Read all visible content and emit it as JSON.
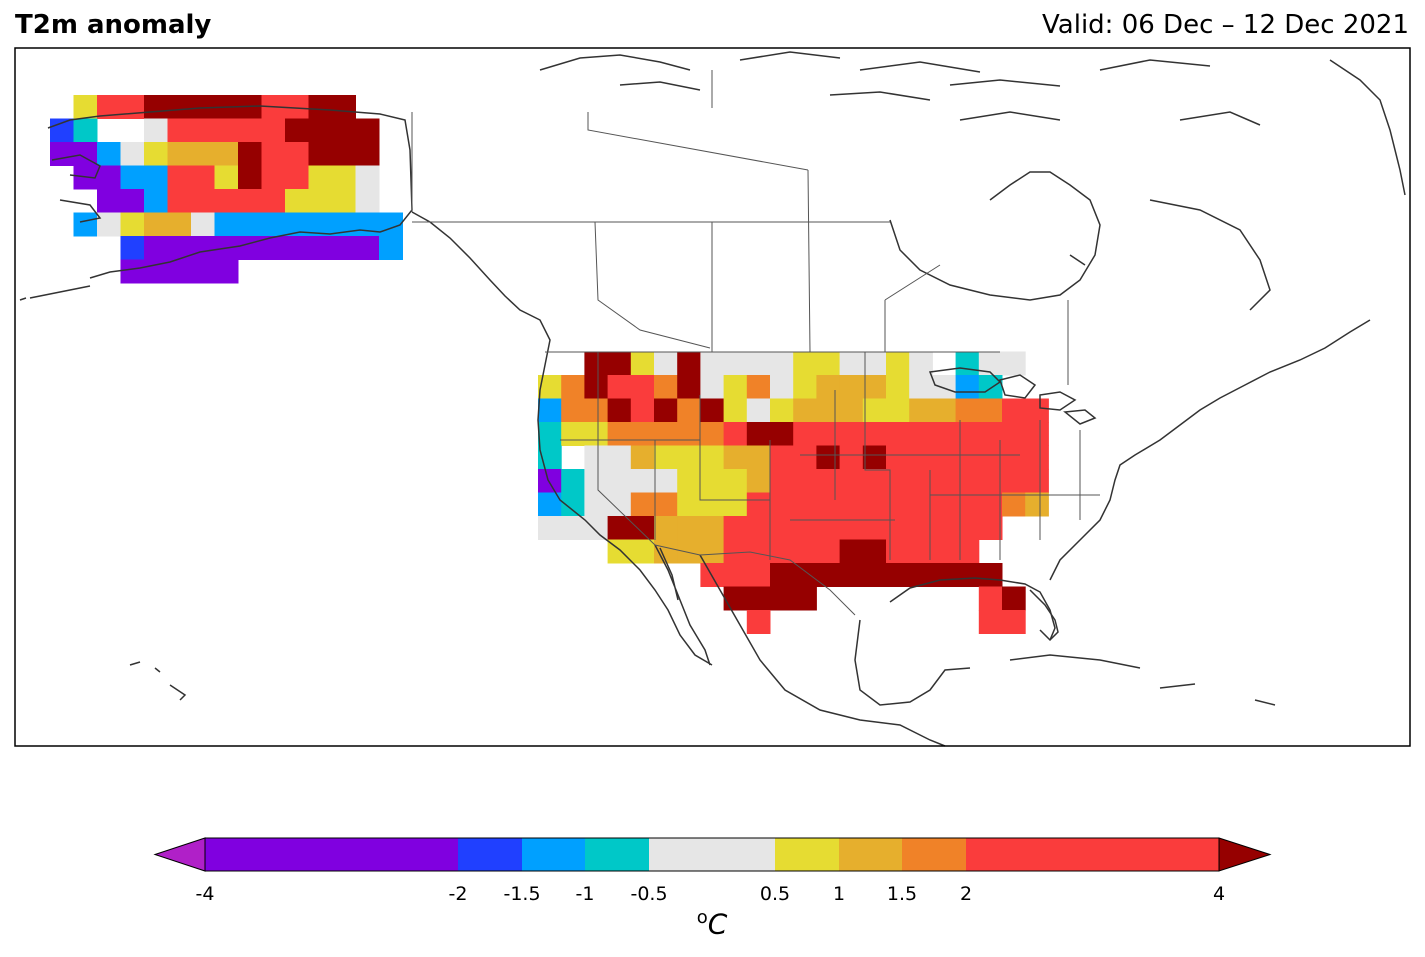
{
  "header": {
    "title": "T2m anomaly",
    "valid": "Valid: 06 Dec – 12 Dec 2021"
  },
  "colorbar": {
    "unit_sup": "o",
    "unit_main": "C",
    "ticks": [
      "-4",
      "-2",
      "-1.5",
      "-1",
      "-0.5",
      "0.5",
      "1",
      "1.5",
      "2",
      "4"
    ],
    "bins": [
      {
        "range": "< -4",
        "color": "#b020c8"
      },
      {
        "range": "-4 to -2",
        "color": "#8000e0"
      },
      {
        "range": "-2 to -1.5",
        "color": "#2040ff"
      },
      {
        "range": "-1.5 to -1",
        "color": "#00a0ff"
      },
      {
        "range": "-1 to -0.5",
        "color": "#00c8c8"
      },
      {
        "range": "-0.5 to 0.5",
        "color": "#e6e6e6"
      },
      {
        "range": "0.5 to 1",
        "color": "#e6dc32"
      },
      {
        "range": "1 to 1.5",
        "color": "#e6af2d"
      },
      {
        "range": "1.5 to 2",
        "color": "#f08228"
      },
      {
        "range": "2 to 4",
        "color": "#fa3c3c"
      },
      {
        "range": "> 4",
        "color": "#960000"
      }
    ]
  },
  "legend_codes": {
    "P": "-4 to -2 (purple)",
    "B": "-2 to -1.5 (blue)",
    "b": "-1.5 to -1 (light blue)",
    "c": "-1 to -0.5 (cyan)",
    "g": "-0.5 to 0.5 (grey)",
    "y": "0.5 to 1 (yellow)",
    "o": "1 to 1.5 (gold)",
    "O": "1.5 to 2 (orange)",
    "r": "2 to 4 (red)",
    "R": "> 4 (dark red)"
  },
  "alaska_grid": [
    ".yrrRRRRRrrRR..",
    "Bc..grrrrrRRRR.",
    "PPbgyoooRrrRRR.",
    ".PPbbrryRrryyg.",
    "..PPbrrrrryyyg.",
    ".bgyoogbbbbbbbb",
    "...BPPPPPPPPPPb",
    "...PPPPP......."
  ],
  "us_grid": [
    "......................",
    "..RRygRggggyyggyg.cgg.",
    "yORrrORgyOgyoooyggbc..",
    "bOORrRORygyoooyyooOOrr",
    "cyyOOOOOrRRrrrrrrrrrrr",
    "c.ggoyyyoorrRrRrrrrrrr",
    "Pcggggyyyorrrrrrrrrrrr",
    "bcggOOyyyrrrrrrrrrrrOo",
    "gggRRooorrrrrrrrrrrr..",
    "...yyooorrrrrRRrrrr...",
    ".......rrrRRRRRRRRRR..",
    "........RRRR.......rR.",
    ".........r.........rr."
  ]
}
